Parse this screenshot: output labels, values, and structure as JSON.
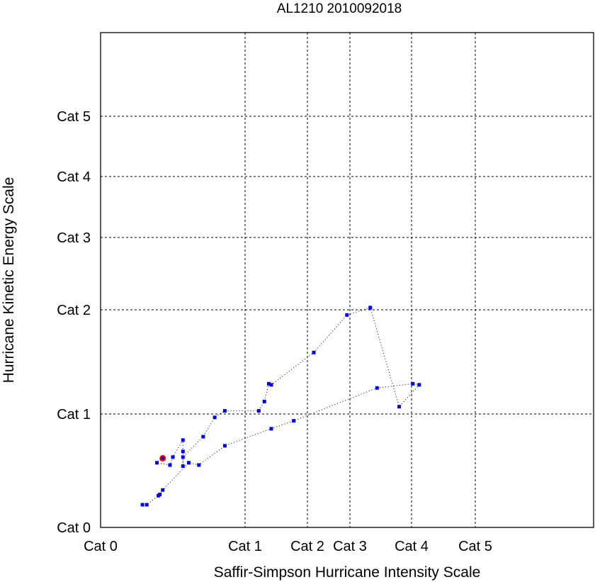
{
  "chart_data": {
    "type": "scatter",
    "title": "AL1210 2010092018",
    "xlabel": "Saffir-Simpson Hurricane Intensity Scale",
    "ylabel": "Hurricane Kinetic Energy Scale",
    "x_ticks": [
      "Cat 0",
      "Cat 1",
      "Cat 2",
      "Cat 3",
      "Cat 4",
      "Cat 5"
    ],
    "y_ticks": [
      "Cat 0",
      "Cat 1",
      "Cat 2",
      "Cat 3",
      "Cat 4",
      "Cat 5"
    ],
    "axis_scale": "category (nonlinear spacing)",
    "xlim": [
      0,
      6.86
    ],
    "ylim": [
      0,
      6.39
    ],
    "grid": true,
    "series": [
      {
        "name": "track",
        "color": "#0000ff",
        "line_color": "#000000",
        "points": [
          [
            0.29,
            0.2
          ],
          [
            0.32,
            0.2
          ],
          [
            0.4,
            0.28
          ],
          [
            0.41,
            0.29
          ],
          [
            0.43,
            0.33
          ],
          [
            0.61,
            0.57
          ],
          [
            0.68,
            0.55
          ],
          [
            0.86,
            0.72
          ],
          [
            1.42,
            0.87
          ],
          [
            1.78,
            0.94
          ],
          [
            3.44,
            1.25
          ],
          [
            4.02,
            1.29
          ],
          [
            4.12,
            1.28
          ],
          [
            3.8,
            1.07
          ],
          [
            3.33,
            2.03
          ],
          [
            2.93,
            1.95
          ],
          [
            2.15,
            1.59
          ],
          [
            1.42,
            1.28
          ],
          [
            1.38,
            1.29
          ],
          [
            1.31,
            1.12
          ],
          [
            1.22,
            1.03
          ],
          [
            0.86,
            1.03
          ],
          [
            0.79,
            0.97
          ],
          [
            0.71,
            0.8
          ],
          [
            0.57,
            0.62
          ],
          [
            0.57,
            0.54
          ],
          [
            0.57,
            0.67
          ],
          [
            0.57,
            0.77
          ],
          [
            0.5,
            0.62
          ],
          [
            0.48,
            0.55
          ],
          [
            0.39,
            0.57
          ],
          [
            0.43,
            0.61
          ]
        ]
      }
    ],
    "current_point": {
      "x": 0.43,
      "y": 0.61,
      "color": "#ff0000"
    }
  }
}
